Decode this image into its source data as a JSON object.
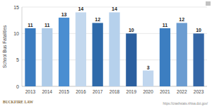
{
  "chart_data": {
    "type": "bar",
    "y_label": "School Bus Fatalities",
    "categories": [
      "2013",
      "2014",
      "2015",
      "2016",
      "2017",
      "2018",
      "2019",
      "2020",
      "2021",
      "2022",
      "2023"
    ],
    "values": [
      11,
      11,
      13,
      14,
      12,
      14,
      10,
      3,
      11,
      12,
      10
    ],
    "colors": [
      "#3b7cc0",
      "#aecbe8",
      "#4a8ed1",
      "#c3d8ee",
      "#2e6aaa",
      "#b6d1ec",
      "#2b5f9f",
      "#c0d6ee",
      "#3c7ec1",
      "#6b9cd1",
      "#3467a7"
    ],
    "ylim": [
      0,
      15
    ],
    "yticks": [
      0,
      5,
      10,
      15
    ],
    "grid": true,
    "data_labels": true,
    "annotations": [
      "BUCKFIRE LAW",
      "https://crashstats.nhtsa.dot.gov/"
    ]
  }
}
